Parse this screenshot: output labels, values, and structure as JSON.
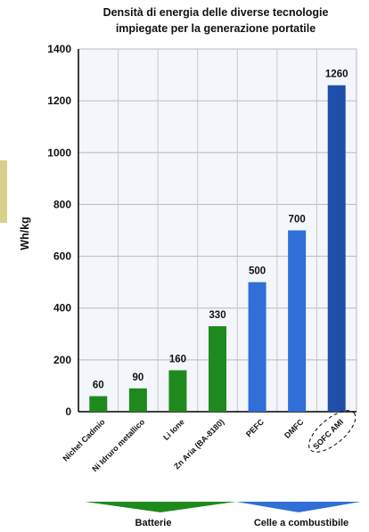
{
  "chart_data": {
    "type": "bar",
    "title": [
      "Densità di energia delle diverse tecnologie",
      "impiegate per la generazione portatile"
    ],
    "y_label": "Wh/kg",
    "categories": [
      "Nichel Cadmio",
      "Ni Idruro metallico",
      "Li Ione",
      "Zn Aria (BA-8180)",
      "PEFC",
      "DMFC",
      "SOFC AMI"
    ],
    "values": [
      60,
      90,
      160,
      330,
      500,
      700,
      1260
    ],
    "colors": [
      "#1e8a1e",
      "#1e8a1e",
      "#1e8a1e",
      "#1e8a1e",
      "#2f6fd6",
      "#2f6fd6",
      "#1f4fa8"
    ],
    "groups": [
      "Batterie",
      "Celle a combustibile"
    ],
    "ylim": [
      0,
      1400
    ],
    "yticks": [
      0,
      200,
      400,
      600,
      800,
      1000,
      1200,
      1400
    ],
    "grid": true
  }
}
